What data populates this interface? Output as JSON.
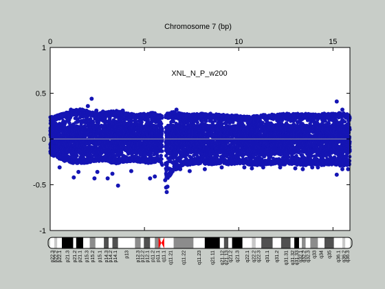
{
  "chart_data": {
    "type": "scatter",
    "title": "Chromosome 7 (bp)",
    "annotation": "XNL_N_P_w200",
    "x_ticks": [
      0,
      5,
      10,
      15
    ],
    "y_ticks": [
      -1,
      -0.5,
      0,
      0.5,
      1
    ],
    "xlim": [
      0,
      15.9
    ],
    "ylim": [
      -1,
      1
    ],
    "grid": false,
    "reference_line_y": 0,
    "colors": {
      "points": "#1515b4",
      "reference_line": "#9a9aa8",
      "centromere": "#ff0000"
    },
    "series": [
      {
        "points_profile": [
          [
            0.0,
            -0.17,
            0.24
          ],
          [
            0.5,
            -0.22,
            0.27
          ],
          [
            1.0,
            -0.26,
            0.3
          ],
          [
            1.5,
            -0.27,
            0.33
          ],
          [
            2.0,
            -0.26,
            0.31
          ],
          [
            2.5,
            -0.24,
            0.28
          ],
          [
            3.0,
            -0.25,
            0.3
          ],
          [
            3.5,
            -0.27,
            0.31
          ],
          [
            4.0,
            -0.25,
            0.29
          ],
          [
            4.5,
            -0.24,
            0.27
          ],
          [
            5.0,
            -0.27,
            0.28
          ],
          [
            5.5,
            -0.26,
            0.29
          ],
          [
            5.85,
            -0.24,
            0.27
          ],
          [
            6.2,
            -0.45,
            0.28
          ],
          [
            6.5,
            -0.36,
            0.3
          ],
          [
            7.0,
            -0.3,
            0.28
          ],
          [
            7.5,
            -0.28,
            0.27
          ],
          [
            8.0,
            -0.27,
            0.28
          ],
          [
            8.5,
            -0.28,
            0.28
          ],
          [
            9.0,
            -0.27,
            0.27
          ],
          [
            9.5,
            -0.28,
            0.26
          ],
          [
            10.0,
            -0.27,
            0.26
          ],
          [
            10.5,
            -0.28,
            0.25
          ],
          [
            11.0,
            -0.29,
            0.26
          ],
          [
            11.5,
            -0.28,
            0.27
          ],
          [
            12.0,
            -0.28,
            0.27
          ],
          [
            12.5,
            -0.28,
            0.28
          ],
          [
            13.0,
            -0.28,
            0.28
          ],
          [
            13.5,
            -0.29,
            0.28
          ],
          [
            14.0,
            -0.28,
            0.27
          ],
          [
            14.5,
            -0.29,
            0.28
          ],
          [
            15.0,
            -0.28,
            0.28
          ],
          [
            15.5,
            -0.3,
            0.29
          ],
          [
            15.9,
            -0.28,
            0.26
          ]
        ],
        "gap": [
          5.95,
          6.12
        ],
        "outliers": [
          [
            0.6,
            0.25
          ],
          [
            1.1,
            0.32
          ],
          [
            1.35,
            0.27
          ],
          [
            1.7,
            0.32
          ],
          [
            2.0,
            0.36
          ],
          [
            2.2,
            0.44
          ],
          [
            2.45,
            0.31
          ],
          [
            2.8,
            0.3
          ],
          [
            3.6,
            0.29
          ],
          [
            3.85,
            0.31
          ],
          [
            4.0,
            0.27
          ],
          [
            4.9,
            0.27
          ],
          [
            5.5,
            0.27
          ],
          [
            5.75,
            0.24
          ],
          [
            6.7,
            0.32
          ],
          [
            7.2,
            0.25
          ],
          [
            8.0,
            0.25
          ],
          [
            8.6,
            0.23
          ],
          [
            9.4,
            0.25
          ],
          [
            12.9,
            0.27
          ],
          [
            14.7,
            0.24
          ],
          [
            15.2,
            0.41
          ],
          [
            15.5,
            0.32
          ],
          [
            15.75,
            0.27
          ],
          [
            0.5,
            -0.31
          ],
          [
            1.25,
            -0.42
          ],
          [
            1.5,
            -0.36
          ],
          [
            2.35,
            -0.43
          ],
          [
            2.5,
            -0.36
          ],
          [
            3.05,
            -0.43
          ],
          [
            3.3,
            -0.38
          ],
          [
            3.6,
            -0.51
          ],
          [
            4.3,
            -0.35
          ],
          [
            5.3,
            -0.43
          ],
          [
            5.55,
            -0.41
          ],
          [
            6.1,
            -0.45
          ],
          [
            6.15,
            -0.53
          ],
          [
            6.18,
            -0.58
          ],
          [
            6.22,
            -0.52
          ],
          [
            6.3,
            -0.4
          ],
          [
            6.4,
            -0.34
          ],
          [
            6.45,
            -0.36
          ],
          [
            6.9,
            -0.33
          ],
          [
            7.4,
            -0.35
          ],
          [
            8.2,
            -0.33
          ],
          [
            9.1,
            -0.31
          ],
          [
            10.3,
            -0.31
          ],
          [
            10.7,
            -0.32
          ],
          [
            11.3,
            -0.31
          ],
          [
            12.2,
            -0.31
          ],
          [
            13.0,
            -0.32
          ],
          [
            13.4,
            -0.33
          ],
          [
            13.9,
            -0.31
          ],
          [
            14.2,
            -0.31
          ],
          [
            15.2,
            -0.39
          ],
          [
            15.5,
            -0.33
          ],
          [
            15.8,
            -0.33
          ],
          [
            15.85,
            -0.27
          ]
        ]
      }
    ]
  },
  "ideogram": {
    "bands": [
      {
        "label": "p22.3",
        "start": 0.0,
        "end": 0.22,
        "stain": "gneg"
      },
      {
        "label": "p22.2",
        "start": 0.22,
        "end": 0.37,
        "stain": "gpos25"
      },
      {
        "label": "p22.1",
        "start": 0.37,
        "end": 0.62,
        "stain": "gneg"
      },
      {
        "label": "p21.3",
        "start": 0.62,
        "end": 1.22,
        "stain": "gpos100"
      },
      {
        "label": "p21.2",
        "start": 1.22,
        "end": 1.38,
        "stain": "gneg"
      },
      {
        "label": "p21.1",
        "start": 1.38,
        "end": 1.75,
        "stain": "gpos100"
      },
      {
        "label": "p15.3",
        "start": 1.75,
        "end": 2.1,
        "stain": "gneg"
      },
      {
        "label": "p15.2",
        "start": 2.1,
        "end": 2.4,
        "stain": "gpos50"
      },
      {
        "label": "p15.1",
        "start": 2.4,
        "end": 2.85,
        "stain": "gneg"
      },
      {
        "label": "p14.3",
        "start": 2.85,
        "end": 3.1,
        "stain": "gpos75"
      },
      {
        "label": "p14.2",
        "start": 3.1,
        "end": 3.3,
        "stain": "gneg"
      },
      {
        "label": "p14.1",
        "start": 3.3,
        "end": 3.6,
        "stain": "gpos75"
      },
      {
        "label": "p13",
        "start": 3.6,
        "end": 4.5,
        "stain": "gneg"
      },
      {
        "label": "p12.3",
        "start": 4.5,
        "end": 4.8,
        "stain": "gpos50"
      },
      {
        "label": "p12.2",
        "start": 4.8,
        "end": 4.97,
        "stain": "gneg"
      },
      {
        "label": "p12.1",
        "start": 4.97,
        "end": 5.3,
        "stain": "gpos75"
      },
      {
        "label": "p11.2",
        "start": 5.3,
        "end": 5.55,
        "stain": "gneg"
      },
      {
        "label": "p11.1",
        "start": 5.55,
        "end": 5.85,
        "stain": "gpos50"
      },
      {
        "label": "q11.1",
        "start": 5.85,
        "end": 6.2,
        "stain": "gneg"
      },
      {
        "label": "q11.21",
        "start": 6.2,
        "end": 6.55,
        "stain": "gneg"
      },
      {
        "label": "q11.22",
        "start": 6.55,
        "end": 7.6,
        "stain": "gpos50"
      },
      {
        "label": "q11.23",
        "start": 7.6,
        "end": 8.2,
        "stain": "gneg"
      },
      {
        "label": "q21.11",
        "start": 8.2,
        "end": 9.0,
        "stain": "gpos100"
      },
      {
        "label": "q21.12",
        "start": 9.0,
        "end": 9.22,
        "stain": "gneg"
      },
      {
        "label": "q21.13",
        "start": 9.22,
        "end": 9.45,
        "stain": "gpos75"
      },
      {
        "label": "q21.2",
        "start": 9.45,
        "end": 9.65,
        "stain": "gneg"
      },
      {
        "label": "q21.3",
        "start": 9.65,
        "end": 10.2,
        "stain": "gpos100"
      },
      {
        "label": "q22.1",
        "start": 10.2,
        "end": 10.7,
        "stain": "gneg"
      },
      {
        "label": "q22.2",
        "start": 10.7,
        "end": 10.9,
        "stain": "gpos25"
      },
      {
        "label": "q22.3",
        "start": 10.9,
        "end": 11.2,
        "stain": "gneg"
      },
      {
        "label": "q31.1",
        "start": 11.2,
        "end": 11.8,
        "stain": "gpos75"
      },
      {
        "label": "q31.2",
        "start": 11.8,
        "end": 12.25,
        "stain": "gneg"
      },
      {
        "label": "q31.31",
        "start": 12.25,
        "end": 12.75,
        "stain": "gpos75"
      },
      {
        "label": "q31.32",
        "start": 12.75,
        "end": 12.95,
        "stain": "gneg"
      },
      {
        "label": "q31.33",
        "start": 12.95,
        "end": 13.2,
        "stain": "gpos100"
      },
      {
        "label": "q32.1",
        "start": 13.2,
        "end": 13.35,
        "stain": "gneg"
      },
      {
        "label": "q32.2",
        "start": 13.35,
        "end": 13.55,
        "stain": "gpos50"
      },
      {
        "label": "q32.3",
        "start": 13.55,
        "end": 13.8,
        "stain": "gneg"
      },
      {
        "label": "q33",
        "start": 13.8,
        "end": 14.2,
        "stain": "gpos50"
      },
      {
        "label": "q34",
        "start": 14.2,
        "end": 14.55,
        "stain": "gneg"
      },
      {
        "label": "q35",
        "start": 14.55,
        "end": 15.05,
        "stain": "gpos75"
      },
      {
        "label": "q36.1",
        "start": 15.05,
        "end": 15.5,
        "stain": "gneg"
      },
      {
        "label": "q36.2",
        "start": 15.5,
        "end": 15.65,
        "stain": "gpos25"
      },
      {
        "label": "q36.3",
        "start": 15.65,
        "end": 15.9,
        "stain": "gneg"
      }
    ],
    "centromere": [
      5.75,
      6.05
    ]
  }
}
